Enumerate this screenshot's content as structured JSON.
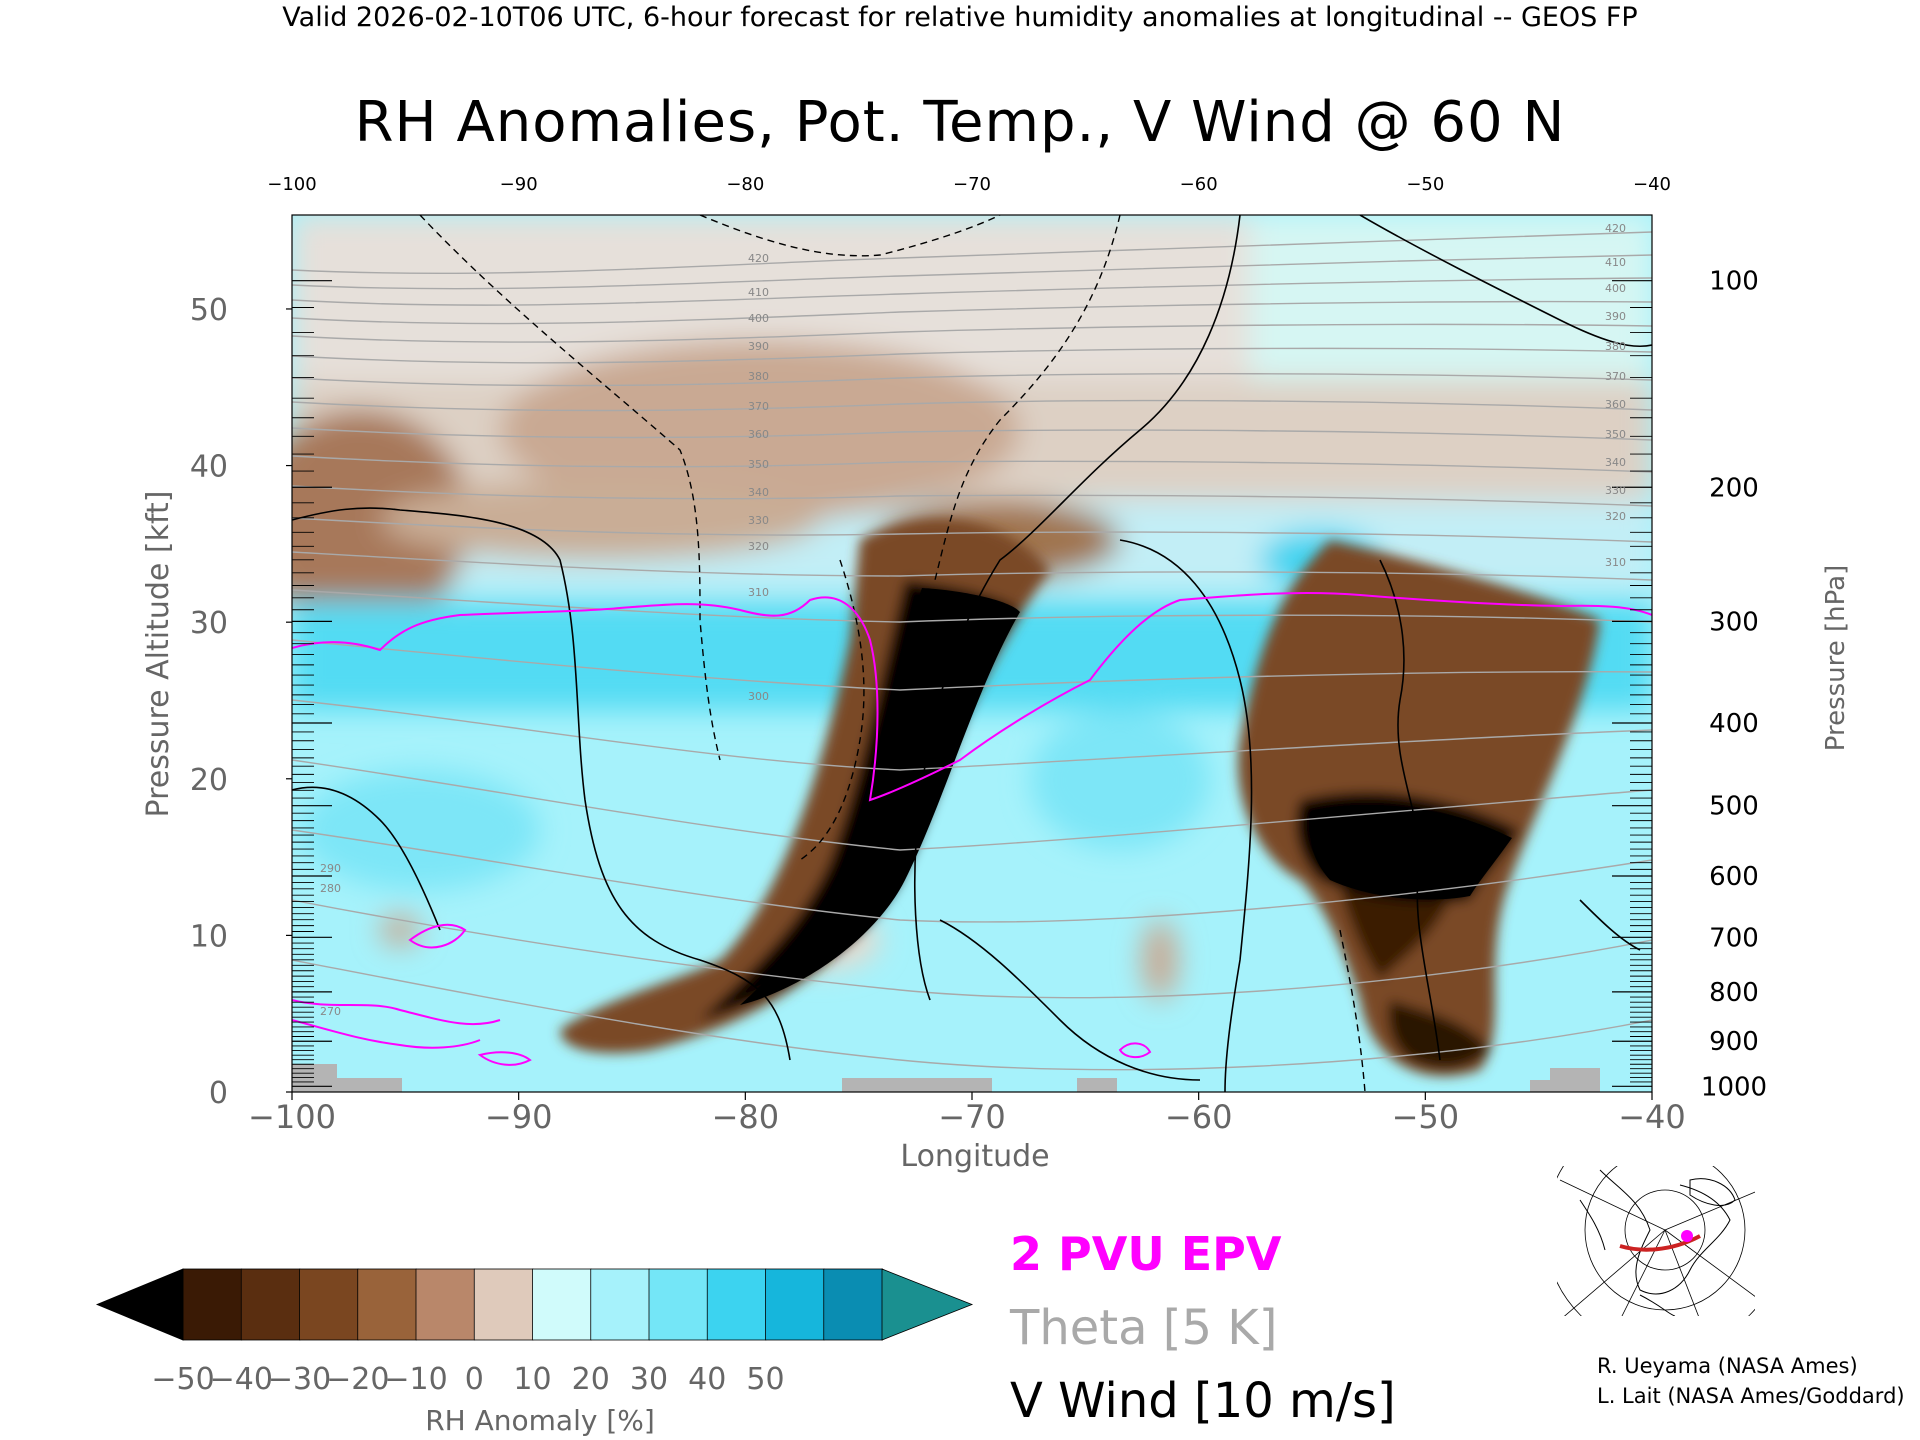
{
  "header": "Valid 2026-02-10T06 UTC, 6-hour forecast for relative humidity anomalies at longitudinal -- GEOS FP",
  "title": "RH Anomalies, Pot. Temp., V Wind @ 60 N",
  "legend": {
    "pv": "2 PVU EPV",
    "theta": "Theta [5 K]",
    "vwind": "V Wind [10 m/s]"
  },
  "credits": [
    "R. Ueyama (NASA Ames)",
    "L. Lait (NASA Ames/Goddard)"
  ],
  "colors": {
    "pv_contour": "#ff00ff",
    "theta_contour": "#a9a9a9",
    "vwind_contour": "#000000",
    "topography": "#b4b4b4",
    "map_track": "#cc2222",
    "map_marker": "#ff00ff"
  },
  "chart_data": {
    "type": "heatmap",
    "title": "RH Anomalies, Pot. Temp., V Wind @ 60 N",
    "xlabel": "Longitude",
    "ylabel": "Pressure Altitude [kft]",
    "y2label": "Pressure [hPa]",
    "xlim": [
      -100,
      -40
    ],
    "ylim": [
      0,
      56
    ],
    "x_ticks": [
      -100,
      -90,
      -80,
      -70,
      -60,
      -50,
      -40
    ],
    "x_tick_labels": [
      "−100",
      "−90",
      "−80",
      "−70",
      "−60",
      "−50",
      "−40"
    ],
    "top_ticks": [
      -100,
      -90,
      -80,
      -70,
      -60,
      -50,
      -40
    ],
    "y_ticks": [
      0,
      10,
      20,
      30,
      40,
      50
    ],
    "pressure_ticks": [
      100,
      200,
      300,
      400,
      500,
      600,
      700,
      800,
      900,
      1000
    ],
    "colorbar": {
      "label": "RH Anomaly [%]",
      "ticks": [
        -50,
        -40,
        -30,
        -20,
        -10,
        0,
        10,
        20,
        30,
        40,
        50
      ],
      "tick_labels": [
        "−50",
        "−40",
        "−30",
        "−20",
        "−10",
        "0",
        "10",
        "20",
        "30",
        "40",
        "50"
      ],
      "colors": [
        "#3a1a05",
        "#5a2e10",
        "#7a4620",
        "#99633a",
        "#b9876a",
        "#dfcabb",
        "#d0fbfb",
        "#a6f2fb",
        "#74e6f7",
        "#3cd3f0",
        "#16b6dc",
        "#0a8db2"
      ],
      "under_color": "#000000",
      "over_color": "#1a9090"
    },
    "theta_contour_levels": [
      270,
      280,
      290,
      300,
      310,
      320,
      330,
      340,
      350,
      360,
      370,
      380,
      390,
      400,
      410,
      420
    ],
    "v_wind_contour_levels": [
      -10,
      0,
      10
    ],
    "pv_contour_level": 2,
    "grid": false
  }
}
